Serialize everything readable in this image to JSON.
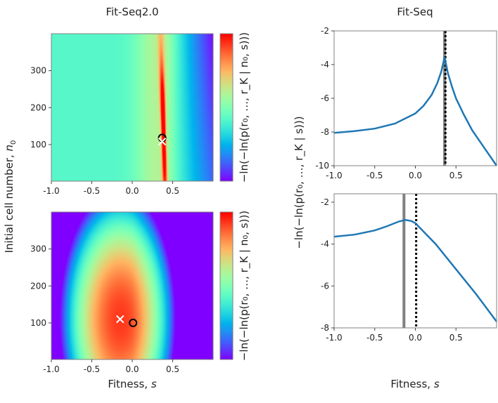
{
  "chart_data": [
    {
      "type": "heatmap",
      "title": "Fit-Seq2.0",
      "panel": "top-left",
      "xlabel": "",
      "ylabel": "Initial cell number, n0",
      "xlim": [
        -1.0,
        1.0
      ],
      "ylim": [
        1,
        400
      ],
      "xticks": [
        "-1.0",
        "-0.5",
        "0.0",
        "0.5"
      ],
      "yticks": [
        "100",
        "200",
        "300"
      ],
      "colorbar_label": "-ln(-ln(p(r0,...,rK | n0,s)))",
      "colormap": "rainbow",
      "ridge": {
        "s_top": 0.35,
        "s_bottom": 0.4
      },
      "markers": [
        {
          "type": "circle",
          "s": 0.37,
          "n0": 118
        },
        {
          "type": "x",
          "s": 0.37,
          "n0": 108
        }
      ]
    },
    {
      "type": "heatmap",
      "panel": "bottom-left",
      "xlabel": "Fitness, s",
      "ylabel": "Initial cell number, n0",
      "xlim": [
        -1.0,
        1.0
      ],
      "ylim": [
        1,
        400
      ],
      "xticks": [
        "-1.0",
        "-0.5",
        "0.0",
        "0.5"
      ],
      "yticks": [
        "100",
        "200",
        "300"
      ],
      "colorbar_label": "-ln(-ln(p(r0,...,rK | n0,s)))",
      "colormap": "rainbow",
      "peak": {
        "s": -0.15,
        "n0": 110
      },
      "markers": [
        {
          "type": "circle",
          "s": 0.01,
          "n0": 100
        },
        {
          "type": "x",
          "s": -0.15,
          "n0": 110
        }
      ]
    },
    {
      "type": "line",
      "title": "Fit-Seq",
      "panel": "top-right",
      "xlim": [
        -1.0,
        1.0
      ],
      "ylim": [
        -10,
        -2
      ],
      "xticks": [
        "-1.0",
        "-0.5",
        "0.0",
        "0.5"
      ],
      "yticks": [
        "-2",
        "-4",
        "-6",
        "-8",
        "-10"
      ],
      "x": [
        -1.0,
        -0.75,
        -0.5,
        -0.25,
        0.0,
        0.1,
        0.2,
        0.27,
        0.32,
        0.36,
        0.4,
        0.45,
        0.5,
        0.6,
        0.7,
        0.8,
        0.9,
        1.0
      ],
      "y": [
        -8.05,
        -7.95,
        -7.8,
        -7.5,
        -6.9,
        -6.45,
        -5.8,
        -5.1,
        -4.4,
        -3.55,
        -4.5,
        -5.3,
        -6.0,
        -7.0,
        -7.9,
        -8.6,
        -9.3,
        -10.0
      ],
      "vlines": [
        {
          "style": "solid",
          "color": "#808080",
          "s": 0.36
        },
        {
          "style": "dotted",
          "color": "#000000",
          "s": 0.37
        }
      ]
    },
    {
      "type": "line",
      "panel": "bottom-right",
      "xlabel": "Fitness, s",
      "ylabel": "-ln(-ln(p(r0,...,rK | s)))",
      "xlim": [
        -1.0,
        1.0
      ],
      "ylim": [
        -8,
        -1.6
      ],
      "xticks": [
        "-1.0",
        "-0.5",
        "0.0",
        "0.5"
      ],
      "yticks": [
        "-2",
        "-4",
        "-6",
        "-8"
      ],
      "x": [
        -1.0,
        -0.75,
        -0.5,
        -0.35,
        -0.2,
        -0.12,
        -0.05,
        0.0,
        0.1,
        0.25,
        0.5,
        0.75,
        1.0
      ],
      "y": [
        -3.65,
        -3.55,
        -3.35,
        -3.15,
        -2.92,
        -2.85,
        -2.9,
        -3.0,
        -3.4,
        -4.0,
        -5.2,
        -6.4,
        -7.7
      ],
      "vlines": [
        {
          "style": "solid",
          "color": "#808080",
          "s": -0.14
        },
        {
          "style": "dotted",
          "color": "#000000",
          "s": 0.01
        }
      ]
    }
  ],
  "titles": {
    "left": "Fit-Seq2.0",
    "right": "Fit-Seq"
  },
  "labels": {
    "xlabel": "Fitness, ",
    "xvar": "s",
    "left_ylabel": "Initial cell number, ",
    "left_yvar": "n",
    "left_ysub": "0",
    "cbar": "−ln(−ln(p(r₀, …, r_K | n₀, s)))",
    "right_ylabel": "−ln(−ln(p(r₀, …, r_K | s)))"
  },
  "colors": {
    "line": "#1f77b4",
    "frame": "#808080"
  }
}
